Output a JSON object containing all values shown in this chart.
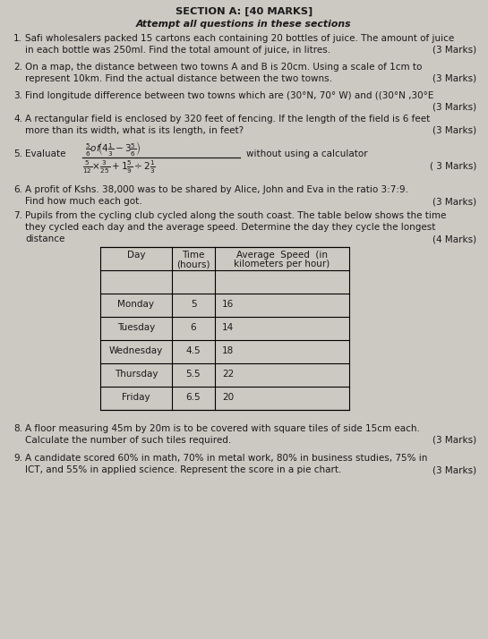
{
  "title": "SECTION A: [40 MARKS]",
  "subtitle": "Attempt all questions in these sections",
  "bg_color": "#ccc8c2",
  "text_color": "#1a1a1a",
  "table_rows": [
    [
      "Monday",
      "5",
      "16"
    ],
    [
      "Tuesday",
      "6",
      "14"
    ],
    [
      "Wednesday",
      "4.5",
      "18"
    ],
    [
      "Thursday",
      "5.5",
      "22"
    ],
    [
      "Friday",
      "6.5",
      "20"
    ]
  ]
}
